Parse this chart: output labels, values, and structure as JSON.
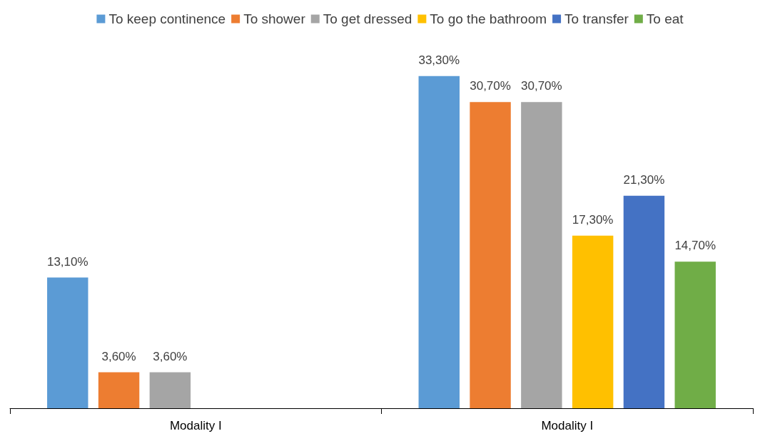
{
  "chart_data": {
    "type": "bar",
    "categories": [
      "Modality I",
      "Modality I"
    ],
    "legend": "top",
    "grid": false,
    "series": [
      {
        "name": "To keep continence",
        "color": "#5b9bd5",
        "values": [
          13.1,
          33.3
        ],
        "value_labels": [
          "13,10%",
          "33,30%"
        ]
      },
      {
        "name": "To shower",
        "color": "#ed7d31",
        "values": [
          3.6,
          30.7
        ],
        "value_labels": [
          "3,60%",
          "30,70%"
        ]
      },
      {
        "name": "To get dressed",
        "color": "#a5a5a5",
        "values": [
          3.6,
          30.7
        ],
        "value_labels": [
          "3,60%",
          "30,70%"
        ]
      },
      {
        "name": "To go the bathroom",
        "color": "#ffc000",
        "values": [
          null,
          17.3
        ],
        "value_labels": [
          null,
          "17,30%"
        ]
      },
      {
        "name": "To transfer",
        "color": "#4472c4",
        "values": [
          null,
          21.3
        ],
        "value_labels": [
          null,
          "21,30%"
        ]
      },
      {
        "name": "To eat",
        "color": "#70ad47",
        "values": [
          null,
          14.7
        ],
        "value_labels": [
          null,
          "14,70%"
        ]
      }
    ]
  }
}
